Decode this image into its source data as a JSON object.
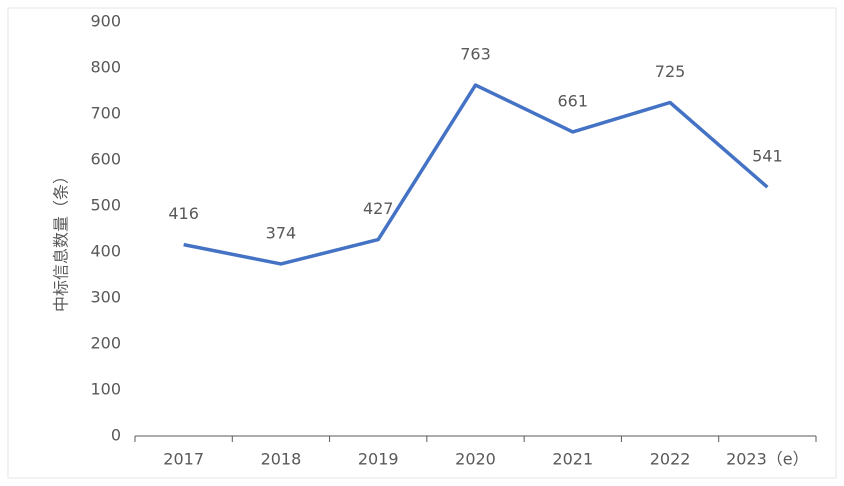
{
  "chart_data": {
    "type": "line",
    "y_label": "中标信息数量（条）",
    "categories": [
      "2017",
      "2018",
      "2019",
      "2020",
      "2021",
      "2022",
      "2023（e）"
    ],
    "values": [
      416,
      374,
      427,
      763,
      661,
      725,
      541
    ],
    "color": "#4472c4",
    "ylim": [
      0,
      900
    ],
    "yticks": [
      0,
      100,
      200,
      300,
      400,
      500,
      600,
      700,
      800,
      900
    ],
    "grid": false
  }
}
